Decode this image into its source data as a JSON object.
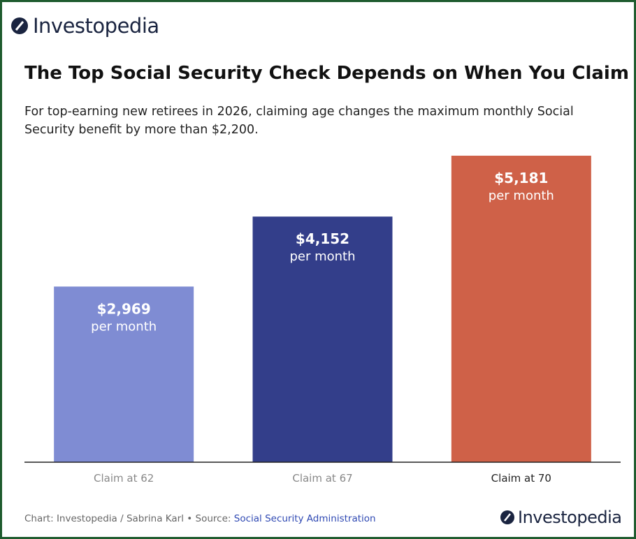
{
  "brand": "Investopedia",
  "chart_data": {
    "type": "bar",
    "title": "The Top Social Security Check Depends on When You Claim",
    "subtitle": "For top-earning new retirees in 2026, claiming age changes the maximum monthly Social Security benefit by more than $2,200.",
    "categories": [
      "Claim at 62",
      "Claim at 67",
      "Claim at 70"
    ],
    "values": [
      2969,
      4152,
      5181
    ],
    "value_labels": [
      "$2,969",
      "$4,152",
      "$5,181"
    ],
    "value_sublabels": [
      "per month",
      "per month",
      "per month"
    ],
    "colors": [
      "#7f8cd3",
      "#333e8a",
      "#cf6148"
    ],
    "highlight": 2,
    "source": {
      "text": "Chart: Investopedia / Sabrina Karl • Source:",
      "link": "Social Security Administration"
    }
  }
}
